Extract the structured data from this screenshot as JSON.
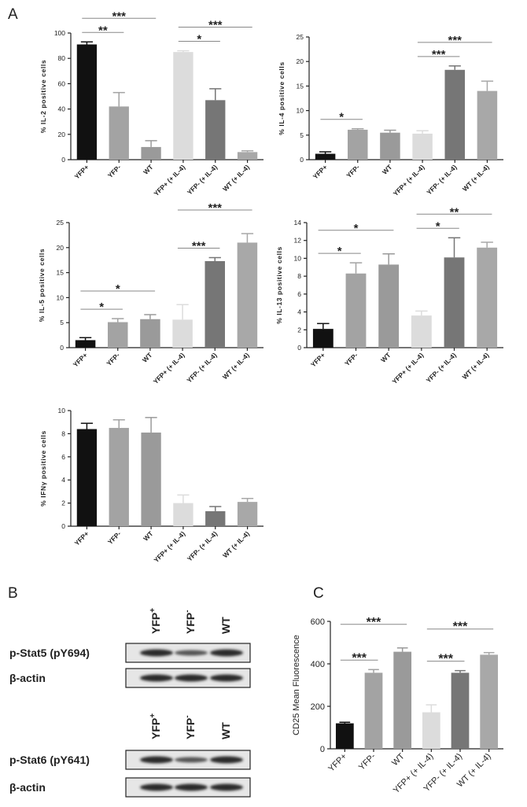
{
  "panel_labels": [
    "A",
    "B",
    "C"
  ],
  "chart_data": [
    {
      "type": "bar",
      "ylabel": "% IL-2 positive cells",
      "categories": [
        "YFP+",
        "YFP-",
        "WT",
        "YFP+ (+ IL-4)",
        "YFP- (+ IL-4)",
        "WT (+ IL-4)"
      ],
      "values": [
        91,
        42,
        10,
        85,
        47,
        6
      ],
      "errors": [
        2,
        11,
        5,
        1,
        9,
        1
      ],
      "colors": [
        "#111111",
        "#a3a3a3",
        "#9a9a9a",
        "#dcdcdc",
        "#767676",
        "#a8a8a8"
      ],
      "ylim": [
        0,
        100
      ],
      "yticks": [
        0,
        20,
        40,
        60,
        80,
        100
      ],
      "annotations": [
        {
          "label": "**",
          "from": 0,
          "to": 1
        },
        {
          "label": "***",
          "from": 0,
          "to": 2
        },
        {
          "label": "*",
          "from": 3,
          "to": 4
        },
        {
          "label": "***",
          "from": 3,
          "to": 5
        }
      ]
    },
    {
      "type": "bar",
      "ylabel": "% IL-4 positive cells",
      "categories": [
        "YFP+",
        "YFP-",
        "WT",
        "YFP+ (+ IL-4)",
        "YFP- (+ IL-4)",
        "WT (+ IL-4)"
      ],
      "values": [
        1.2,
        6.1,
        5.5,
        5.3,
        18.3,
        14
      ],
      "errors": [
        0.4,
        0.2,
        0.5,
        0.6,
        0.8,
        2
      ],
      "colors": [
        "#111111",
        "#a3a3a3",
        "#9a9a9a",
        "#dcdcdc",
        "#767676",
        "#a8a8a8"
      ],
      "ylim": [
        0,
        25
      ],
      "yticks": [
        0,
        5,
        10,
        15,
        20,
        25
      ],
      "annotations": [
        {
          "label": "*",
          "from": 0,
          "to": 1
        },
        {
          "label": "***",
          "from": 3,
          "to": 4
        },
        {
          "label": "***",
          "from": 3,
          "to": 5
        }
      ]
    },
    {
      "type": "bar",
      "ylabel": "% IL-5 positive cells",
      "categories": [
        "YFP+",
        "YFP-",
        "WT",
        "YFP+ (+ IL-4)",
        "YFP- (+ IL-4)",
        "WT (+ IL-4)"
      ],
      "values": [
        1.5,
        5.1,
        5.7,
        5.6,
        17.3,
        21
      ],
      "errors": [
        0.5,
        0.7,
        0.9,
        3,
        0.7,
        1.8
      ],
      "colors": [
        "#111111",
        "#a3a3a3",
        "#9a9a9a",
        "#dcdcdc",
        "#767676",
        "#a8a8a8"
      ],
      "ylim": [
        0,
        25
      ],
      "yticks": [
        0,
        5,
        10,
        15,
        20,
        25
      ],
      "annotations": [
        {
          "label": "*",
          "from": 0,
          "to": 1
        },
        {
          "label": "*",
          "from": 0,
          "to": 2
        },
        {
          "label": "***",
          "from": 3,
          "to": 4
        },
        {
          "label": "***",
          "from": 3,
          "to": 5
        }
      ]
    },
    {
      "type": "bar",
      "ylabel": "% IL-13 positive cells",
      "categories": [
        "YFP+",
        "YFP-",
        "WT",
        "YFP+ (+ IL-4)",
        "YFP- (+ IL-4)",
        "WT (+ IL-4)"
      ],
      "values": [
        2.1,
        8.3,
        9.3,
        3.6,
        10.1,
        11.2
      ],
      "errors": [
        0.6,
        1.2,
        1.2,
        0.5,
        2.2,
        0.6
      ],
      "colors": [
        "#111111",
        "#a3a3a3",
        "#9a9a9a",
        "#dcdcdc",
        "#767676",
        "#a8a8a8"
      ],
      "ylim": [
        0,
        14
      ],
      "yticks": [
        0,
        2,
        4,
        6,
        8,
        10,
        12,
        14
      ],
      "annotations": [
        {
          "label": "*",
          "from": 0,
          "to": 1
        },
        {
          "label": "*",
          "from": 0,
          "to": 2
        },
        {
          "label": "*",
          "from": 3,
          "to": 4
        },
        {
          "label": "**",
          "from": 3,
          "to": 5
        }
      ]
    },
    {
      "type": "bar",
      "ylabel": "% IFNγ positive cells",
      "categories": [
        "YFP+",
        "YFP-",
        "WT",
        "YFP+ (+ IL-4)",
        "YFP- (+ IL-4)",
        "WT (+ IL-4)"
      ],
      "values": [
        8.4,
        8.5,
        8.1,
        2.0,
        1.3,
        2.1
      ],
      "errors": [
        0.5,
        0.7,
        1.3,
        0.7,
        0.4,
        0.3
      ],
      "colors": [
        "#111111",
        "#a3a3a3",
        "#9a9a9a",
        "#dcdcdc",
        "#767676",
        "#a8a8a8"
      ],
      "ylim": [
        0,
        10
      ],
      "yticks": [
        0,
        2,
        4,
        6,
        8,
        10
      ],
      "annotations": []
    },
    {
      "type": "bar",
      "ylabel": "CD25 Mean Fluorescence",
      "categories": [
        "YFP+",
        "YFP-",
        "WT",
        "YFP+ (+ IL-4)",
        "YFP- (+ IL-4)",
        "WT (+ IL-4)"
      ],
      "values": [
        120,
        358,
        457,
        172,
        358,
        443
      ],
      "errors": [
        5,
        15,
        18,
        35,
        10,
        10
      ],
      "colors": [
        "#111111",
        "#a3a3a3",
        "#9a9a9a",
        "#dcdcdc",
        "#767676",
        "#a8a8a8"
      ],
      "ylim": [
        0,
        600
      ],
      "yticks": [
        0,
        200,
        400,
        600
      ],
      "annotations": [
        {
          "label": "***",
          "from": 0,
          "to": 1
        },
        {
          "label": "***",
          "from": 0,
          "to": 2
        },
        {
          "label": "***",
          "from": 3,
          "to": 4
        },
        {
          "label": "***",
          "from": 3,
          "to": 5
        }
      ]
    }
  ],
  "blot": {
    "groups": [
      {
        "lanes": [
          {
            "name": "YFP",
            "sup": "+"
          },
          {
            "name": "YFP",
            "sup": "-"
          },
          {
            "name": "WT"
          }
        ],
        "rows": [
          "p-Stat5 (pY694)",
          "β-actin"
        ]
      },
      {
        "lanes": [
          {
            "name": "YFP",
            "sup": "+"
          },
          {
            "name": "YFP",
            "sup": "-"
          },
          {
            "name": "WT"
          }
        ],
        "rows": [
          "p-Stat6 (pY641)",
          "β-actin"
        ]
      }
    ]
  }
}
